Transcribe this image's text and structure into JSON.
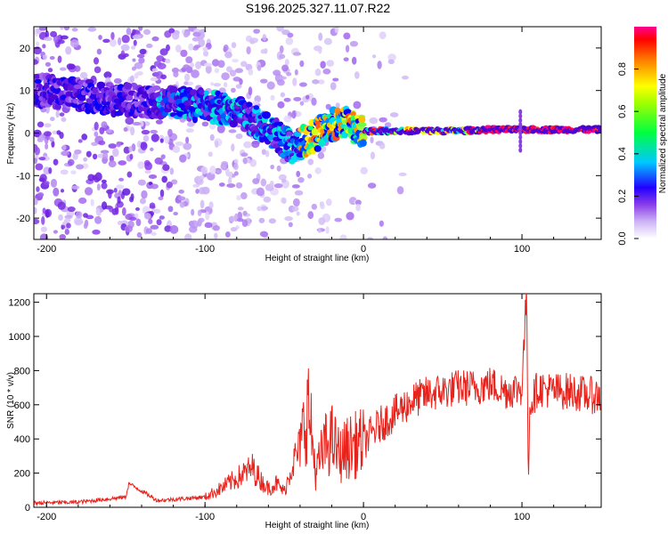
{
  "title": "S196.2025.327.11.07.R22",
  "chart_data": [
    {
      "type": "heatmap",
      "name": "spectrogram",
      "xlabel": "Height of straight line (km)",
      "ylabel": "Frequency (Hz)",
      "xlim": [
        -208,
        150
      ],
      "ylim": [
        -25,
        25
      ],
      "xticks": [
        -200,
        -100,
        0,
        100
      ],
      "yticks": [
        -20,
        -10,
        0,
        10,
        20
      ],
      "ridge": {
        "x": [
          -200,
          -180,
          -160,
          -140,
          -120,
          -100,
          -80,
          -70,
          -60,
          -50,
          -45,
          -40,
          -35,
          -30,
          -25,
          -20,
          -15,
          -10,
          -5,
          0,
          20,
          40,
          60,
          80,
          100,
          120,
          150
        ],
        "freq": [
          10,
          9,
          8,
          7.5,
          7,
          6.5,
          5,
          3,
          1,
          -2,
          -3.5,
          -2.5,
          -1.5,
          -0.5,
          1,
          2,
          2.5,
          2,
          1,
          0.5,
          0.5,
          0.5,
          0.5,
          0.8,
          0.8,
          0.8,
          0.8
        ]
      },
      "colorbar": {
        "label": "Normalized spectral amplitude",
        "range": [
          0,
          1
        ],
        "ticks": [
          0.0,
          0.2,
          0.4,
          0.6,
          0.8
        ],
        "tick_labels": [
          "0.0",
          "0.2",
          "0.4",
          "0.6",
          "0.8"
        ]
      }
    },
    {
      "type": "line",
      "name": "snr",
      "xlabel": "Height of straight line (km)",
      "ylabel": "SNR (10 * v/v)",
      "xlim": [
        -208,
        150
      ],
      "ylim": [
        0,
        1250
      ],
      "xticks": [
        -200,
        -100,
        0,
        100
      ],
      "yticks": [
        0,
        200,
        400,
        600,
        800,
        1000,
        1200
      ],
      "color": "#e8231c",
      "series": {
        "x": [
          -208,
          -180,
          -150,
          -148,
          -130,
          -100,
          -90,
          -80,
          -70,
          -65,
          -60,
          -55,
          -50,
          -45,
          -40,
          -35,
          -30,
          -25,
          -20,
          -15,
          -10,
          0,
          10,
          20,
          30,
          40,
          50,
          60,
          70,
          80,
          90,
          100,
          102,
          103,
          104,
          105,
          110,
          120,
          130,
          140,
          150
        ],
        "y": [
          25,
          30,
          60,
          140,
          40,
          60,
          110,
          170,
          230,
          160,
          110,
          140,
          90,
          250,
          350,
          600,
          200,
          350,
          400,
          300,
          350,
          380,
          480,
          550,
          620,
          660,
          680,
          700,
          700,
          720,
          680,
          700,
          1100,
          1250,
          200,
          600,
          700,
          680,
          680,
          660,
          650
        ]
      }
    }
  ],
  "colors": {
    "colormap": [
      "#ffffff",
      "#cdb4f5",
      "#8a3dea",
      "#4b00d6",
      "#0000ff",
      "#00d8ff",
      "#00ff80",
      "#ffff00",
      "#ff8000",
      "#ff0040",
      "#ff00c0"
    ],
    "snr_line": "#e8231c"
  }
}
